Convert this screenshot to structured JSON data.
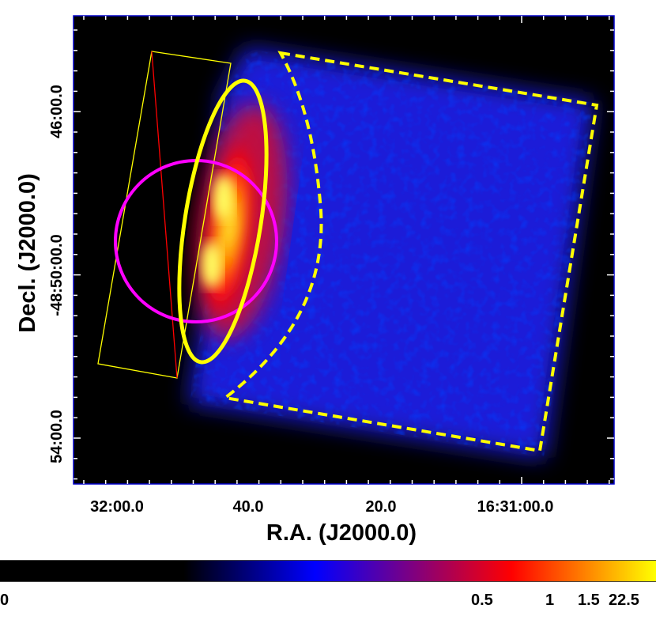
{
  "axes": {
    "xlabel": "R.A. (J2000.0)",
    "ylabel": "Decl. (J2000.0)",
    "x_ticks": [
      "32:00.0",
      "40.0",
      "20.0",
      "16:31:00.0"
    ],
    "y_ticks": [
      "46:00.0",
      "-48:50:00.0",
      "54:00.0"
    ]
  },
  "colorbar": {
    "ticks": [
      "0",
      "0.5",
      "1",
      "1.5",
      "22.5"
    ],
    "colors": [
      "#000000",
      "#000000",
      "#0000ff",
      "#ff0000",
      "#ffff00"
    ]
  },
  "overlays": {
    "ellipse_color": "#ffff00",
    "circle_color": "#ff00ff",
    "box_color": "#ffff00",
    "dashed_region_color": "#ffff00",
    "diagonal_line_color": "#ff0000"
  },
  "image": {
    "background_color": "#000000",
    "frame_color": "#0000ff",
    "emission_colors": [
      "#0000ff",
      "#ff0000",
      "#ffff00"
    ]
  }
}
